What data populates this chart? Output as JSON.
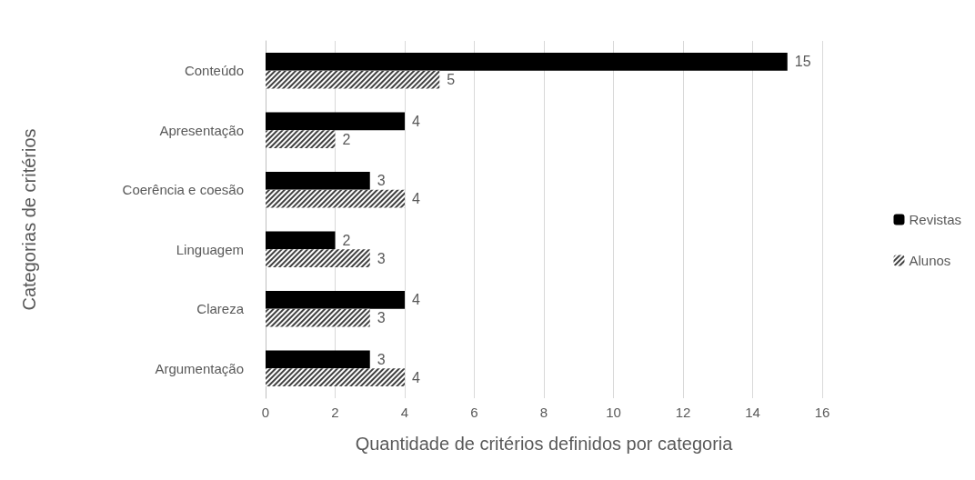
{
  "chart_data": {
    "type": "bar",
    "orientation": "horizontal",
    "xlabel": "Quantidade de critérios definidos por categoria",
    "ylabel": "Categorias de critérios",
    "categories": [
      "Conteúdo",
      "Apresentação",
      "Coerência e coesão",
      "Linguagem",
      "Clareza",
      "Argumentação"
    ],
    "series": [
      {
        "name": "Revistas",
        "color": "#000000",
        "values": [
          15,
          4,
          3,
          2,
          4,
          3
        ]
      },
      {
        "name": "Alunos",
        "color": "#404040",
        "values": [
          5,
          2,
          4,
          3,
          3,
          4
        ]
      }
    ],
    "xlim": [
      0,
      16
    ],
    "xticks": [
      0,
      2,
      4,
      6,
      8,
      10,
      12,
      14,
      16
    ],
    "grid": "x",
    "legend": "right",
    "data_labels": true
  }
}
